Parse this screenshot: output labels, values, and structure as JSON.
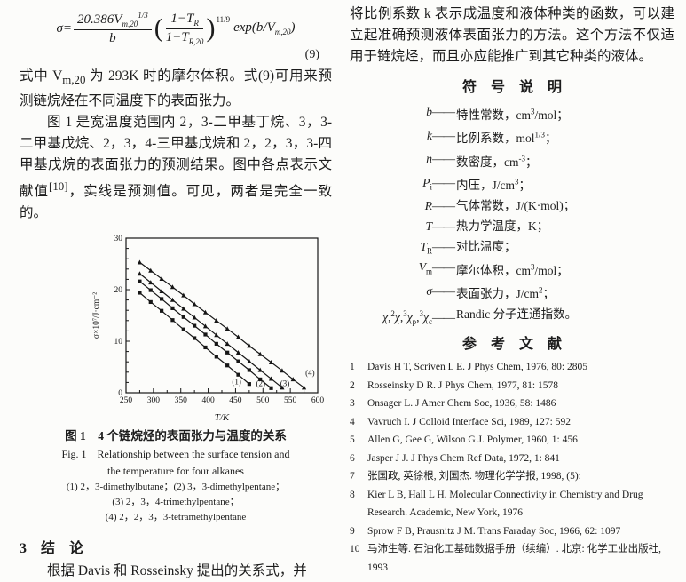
{
  "left_column": {
    "equation": {
      "lhs": "σ=",
      "frac1_num": "20.386V_{m,20}^{1/3}",
      "frac1_den": "b",
      "frac2_num": "1−T_{R}",
      "frac2_den": "1−T_{R,20}",
      "outer_exponent": "11/9",
      "tail": "exp(b/V_{m,20})",
      "number": "(9)"
    },
    "paragraph_after_eq": "式中 V_{m,20} 为 293K 时的摩尔体积。式(9)可用来预测链烷烃在不同温度下的表面张力。",
    "paragraph_fig_intro": "图 1 是宽温度范围内 2，3-二甲基丁烷、3，3-二甲基戊烷、2，3，4-三甲基戊烷和 2，2，3，3-四甲基戊烷的表面张力的预测结果。图中各点表示文献值^{[10]}，实线是预测值。可见，两者是完全一致的。",
    "figure_caption_lines": [
      "图 1　4 个链烷烃的表面张力与温度的关系",
      "Fig. 1　Relationship between the surface tension and",
      "the temperature for four alkanes",
      "(1) 2，3-dimethylbutane；(2) 3，3-dimethylpentane；",
      "(3) 2，3，4-trimethylpentane；",
      "(4) 2，2，3，3-tetramethylpentane"
    ],
    "conclusion_heading": "3　结　论",
    "conclusion_paragraph": "根据 Davis 和 Rosseinsky 提出的关系式，并"
  },
  "right_column": {
    "paragraph": "将比例系数 k 表示成温度和液体种类的函数，可以建立起准确预测液体表面张力的方法。这个方法不仅适用于链烷烃，而且亦应能推广到其它种类的液体。",
    "symbols_heading": "符　号　说　明",
    "symbols": [
      {
        "sym": "b",
        "desc": "特性常数，cm^{3}/mol；"
      },
      {
        "sym": "k",
        "desc": "比例系数，mol^{1/3}；"
      },
      {
        "sym": "n",
        "desc": "数密度，cm^{-3}；"
      },
      {
        "sym": "P_{i}",
        "desc": "内压，J/cm^{3}；"
      },
      {
        "sym": "R",
        "desc": "气体常数，J/(K·mol)；"
      },
      {
        "sym": "T",
        "desc": "热力学温度，K；"
      },
      {
        "sym": "T_{R}",
        "desc": "对比温度；"
      },
      {
        "sym": "V_{m}",
        "desc": "摩尔体积，cm^{3}/mol；"
      },
      {
        "sym": "σ",
        "desc": "表面张力，J/cm^{2}；"
      },
      {
        "sym": "χ,^{2}χ,^{3}χ_{p},^{3}χ_{c}",
        "desc": "Randic 分子连通指数。"
      }
    ],
    "references_heading": "参　考　文　献",
    "references": [
      {
        "num": "1",
        "text": "Davis H T, Scriven L E.  J Phys Chem, 1976, 80: 2805"
      },
      {
        "num": "2",
        "text": "Rosseinsky D R.  J Phys Chem, 1977, 81: 1578"
      },
      {
        "num": "3",
        "text": "Onsager L.  J Amer Chem Soc, 1936, 58: 1486"
      },
      {
        "num": "4",
        "text": "Vavruch I.  J Colloid Interface Sci, 1989, 127: 592"
      },
      {
        "num": "5",
        "text": "Allen G, Gee G, Wilson G J.  Polymer, 1960, 1: 456"
      },
      {
        "num": "6",
        "text": "Jasper J J.  J Phys Chem Ref Data, 1972, 1: 841"
      },
      {
        "num": "7",
        "text": "张国政, 英徐根, 刘国杰. 物理化学学报, 1998, (5):"
      },
      {
        "num": "8",
        "text": "Kier L B, Hall L H.  Molecular Connectivity in Chemistry and Drug Research.  Academic, New York, 1976"
      },
      {
        "num": "9",
        "text": "Sprow F B, Prausnitz J M. Trans Faraday Soc, 1966, 62: 1097"
      },
      {
        "num": "10",
        "text": "马沛生等. 石油化工基础数据手册（续编）. 北京: 化学工业出版社, 1993"
      }
    ]
  },
  "chart_data": {
    "type": "line",
    "title": "",
    "xlabel": "T/K",
    "ylabel": "σ×10⁷/J·cm⁻²",
    "xlim": [
      250,
      600
    ],
    "ylim": [
      0,
      30
    ],
    "xticks": [
      250,
      300,
      350,
      400,
      450,
      500,
      550,
      600
    ],
    "yticks": [
      0,
      10,
      20,
      30
    ],
    "x_minor_step": 25,
    "y_minor_step": 2,
    "grid": false,
    "line_color": "#161616",
    "series": [
      {
        "name": "(1) 2,3-dimethylbutane",
        "marker": "square",
        "x": [
          275,
          295,
          315,
          335,
          355,
          375,
          395,
          415,
          435,
          455,
          475
        ],
        "y": [
          19.4,
          17.6,
          15.9,
          14.1,
          12.3,
          10.6,
          8.8,
          7.0,
          5.3,
          3.5,
          1.7
        ]
      },
      {
        "name": "(2) 3,3-dimethylpentane",
        "marker": "square",
        "x": [
          275,
          295,
          315,
          335,
          355,
          375,
          395,
          415,
          435,
          455,
          475,
          495,
          515
        ],
        "y": [
          21.6,
          19.9,
          18.2,
          16.4,
          14.7,
          13.0,
          11.3,
          9.5,
          7.8,
          6.1,
          4.4,
          2.6,
          0.9
        ]
      },
      {
        "name": "(3) 2,3,4-trimethylpentane",
        "marker": "triangle",
        "x": [
          275,
          295,
          315,
          335,
          355,
          375,
          395,
          415,
          435,
          455,
          475,
          495,
          515,
          535
        ],
        "y": [
          23.1,
          21.4,
          19.7,
          18.0,
          16.3,
          14.6,
          12.9,
          11.2,
          9.5,
          7.8,
          6.1,
          4.4,
          2.7,
          1.0
        ]
      },
      {
        "name": "(4) 2,2,3,3-tetramethylpentane",
        "marker": "triangle",
        "x": [
          275,
          295,
          315,
          335,
          355,
          375,
          395,
          415,
          435,
          455,
          475,
          495,
          515,
          535,
          555,
          575
        ],
        "y": [
          25.3,
          23.7,
          22.1,
          20.5,
          18.9,
          17.2,
          15.6,
          14.0,
          12.4,
          10.8,
          9.1,
          7.5,
          5.9,
          4.3,
          2.6,
          1.0
        ]
      }
    ],
    "annotations": [
      {
        "text": "(1)",
        "x": 452,
        "y": 1.6
      },
      {
        "text": "(2)",
        "x": 496,
        "y": 1.3
      },
      {
        "text": "(3)",
        "x": 540,
        "y": 1.3
      },
      {
        "text": "(4)",
        "x": 586,
        "y": 3.4
      }
    ]
  }
}
